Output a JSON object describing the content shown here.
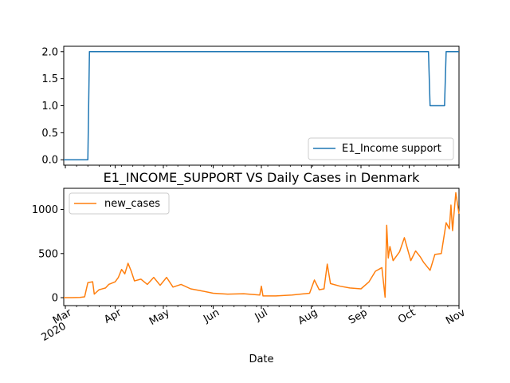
{
  "chart_data": [
    {
      "type": "line",
      "title": "",
      "xlabel": "",
      "ylabel": "",
      "ylim": [
        -0.1,
        2.1
      ],
      "yticks": [
        "0.0",
        "0.5",
        "1.0",
        "1.5",
        "2.0"
      ],
      "legend": "bottom-right",
      "series": [
        {
          "name": "E1_Income support",
          "color": "#1f77b4",
          "points": [
            [
              "2020-02-29",
              0
            ],
            [
              "2020-03-15",
              0
            ],
            [
              "2020-03-16",
              2
            ],
            [
              "2020-10-13",
              2
            ],
            [
              "2020-10-14",
              1
            ],
            [
              "2020-10-23",
              1
            ],
            [
              "2020-10-24",
              2
            ],
            [
              "2020-11-01",
              2
            ]
          ]
        }
      ]
    },
    {
      "type": "line",
      "title": "E1_INCOME_SUPPORT VS Daily Cases in Denmark",
      "xlabel": "Date",
      "ylabel": "",
      "ylim": [
        -90,
        1240
      ],
      "yticks": [
        "0",
        "500",
        "1000"
      ],
      "xticks": [
        {
          "date": "2020-03-01",
          "label": "Mar",
          "sublabel": "2020"
        },
        {
          "date": "2020-04-01",
          "label": "Apr"
        },
        {
          "date": "2020-05-01",
          "label": "May"
        },
        {
          "date": "2020-06-01",
          "label": "Jun"
        },
        {
          "date": "2020-07-01",
          "label": "Jul"
        },
        {
          "date": "2020-08-01",
          "label": "Aug"
        },
        {
          "date": "2020-09-01",
          "label": "Sep"
        },
        {
          "date": "2020-10-01",
          "label": "Oct"
        },
        {
          "date": "2020-11-01",
          "label": "Nov"
        }
      ],
      "legend": "top-left",
      "series": [
        {
          "name": "new_cases",
          "color": "#ff7f0e",
          "points": [
            [
              "2020-02-29",
              0
            ],
            [
              "2020-03-05",
              0
            ],
            [
              "2020-03-10",
              3
            ],
            [
              "2020-03-13",
              10
            ],
            [
              "2020-03-15",
              170
            ],
            [
              "2020-03-18",
              180
            ],
            [
              "2020-03-19",
              40
            ],
            [
              "2020-03-22",
              90
            ],
            [
              "2020-03-26",
              110
            ],
            [
              "2020-03-28",
              150
            ],
            [
              "2020-04-01",
              180
            ],
            [
              "2020-04-03",
              230
            ],
            [
              "2020-04-05",
              320
            ],
            [
              "2020-04-07",
              270
            ],
            [
              "2020-04-09",
              390
            ],
            [
              "2020-04-11",
              300
            ],
            [
              "2020-04-13",
              190
            ],
            [
              "2020-04-17",
              210
            ],
            [
              "2020-04-21",
              150
            ],
            [
              "2020-04-25",
              230
            ],
            [
              "2020-04-29",
              140
            ],
            [
              "2020-05-03",
              230
            ],
            [
              "2020-05-07",
              120
            ],
            [
              "2020-05-12",
              150
            ],
            [
              "2020-05-18",
              100
            ],
            [
              "2020-05-24",
              80
            ],
            [
              "2020-06-01",
              50
            ],
            [
              "2020-06-10",
              40
            ],
            [
              "2020-06-20",
              45
            ],
            [
              "2020-06-30",
              30
            ],
            [
              "2020-07-01",
              130
            ],
            [
              "2020-07-02",
              20
            ],
            [
              "2020-07-10",
              20
            ],
            [
              "2020-07-20",
              30
            ],
            [
              "2020-07-31",
              50
            ],
            [
              "2020-08-03",
              200
            ],
            [
              "2020-08-06",
              90
            ],
            [
              "2020-08-09",
              100
            ],
            [
              "2020-08-11",
              380
            ],
            [
              "2020-08-13",
              160
            ],
            [
              "2020-08-19",
              130
            ],
            [
              "2020-08-25",
              110
            ],
            [
              "2020-09-01",
              100
            ],
            [
              "2020-09-06",
              180
            ],
            [
              "2020-09-10",
              300
            ],
            [
              "2020-09-14",
              340
            ],
            [
              "2020-09-16",
              5
            ],
            [
              "2020-09-17",
              820
            ],
            [
              "2020-09-18",
              450
            ],
            [
              "2020-09-19",
              580
            ],
            [
              "2020-09-21",
              420
            ],
            [
              "2020-09-25",
              520
            ],
            [
              "2020-09-28",
              680
            ],
            [
              "2020-10-02",
              420
            ],
            [
              "2020-10-05",
              530
            ],
            [
              "2020-10-08",
              460
            ],
            [
              "2020-10-10",
              400
            ],
            [
              "2020-10-14",
              310
            ],
            [
              "2020-10-17",
              490
            ],
            [
              "2020-10-21",
              500
            ],
            [
              "2020-10-24",
              850
            ],
            [
              "2020-10-26",
              780
            ],
            [
              "2020-10-27",
              1050
            ],
            [
              "2020-10-28",
              760
            ],
            [
              "2020-10-30",
              1190
            ],
            [
              "2020-11-01",
              950
            ]
          ]
        }
      ]
    }
  ]
}
